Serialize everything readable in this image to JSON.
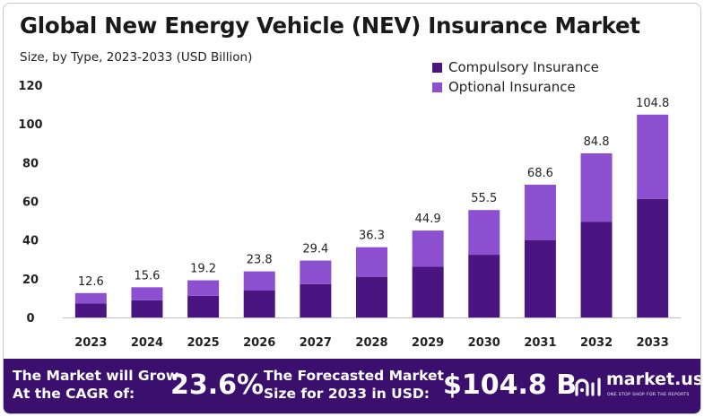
{
  "title": "Global New Energy Vehicle (NEV) Insurance Market",
  "subtitle": "Size, by Type, 2023-2033 (USD Billion)",
  "colors": {
    "compulsory": "#4a1580",
    "optional": "#8b4fd0",
    "footer": "#3b0f6e"
  },
  "chart_data": {
    "type": "bar",
    "stacked": true,
    "categories": [
      "2023",
      "2024",
      "2025",
      "2026",
      "2027",
      "2028",
      "2029",
      "2030",
      "2031",
      "2032",
      "2033"
    ],
    "series": [
      {
        "name": "Compulsory Insurance",
        "values": [
          7.3,
          8.9,
          11.2,
          13.9,
          17.2,
          21.0,
          26.2,
          32.4,
          40.0,
          49.5,
          61.2
        ]
      },
      {
        "name": "Optional Insurance",
        "values": [
          5.3,
          6.7,
          8.0,
          9.9,
          12.2,
          15.3,
          18.7,
          23.1,
          28.6,
          35.3,
          43.6
        ]
      }
    ],
    "totals": [
      "12.6",
      "15.6",
      "19.2",
      "23.8",
      "29.4",
      "36.3",
      "44.9",
      "55.5",
      "68.6",
      "84.8",
      "104.8"
    ],
    "yticks": [
      0,
      20,
      40,
      60,
      80,
      100,
      120
    ],
    "ylim": [
      0,
      120
    ],
    "grid": false,
    "legend_position": "top-right"
  },
  "footer": {
    "cagr_label_line1": "The Market will Grow",
    "cagr_label_line2": "At the CAGR of:",
    "cagr_value": "23.6%",
    "forecast_label_line1": "The Forecasted Market",
    "forecast_label_line2": "Size for 2033 in USD:",
    "forecast_value": "$104.8 B",
    "brand_name": "market.us",
    "brand_tagline": "ONE STOP SHOP FOR THE REPORTS"
  }
}
